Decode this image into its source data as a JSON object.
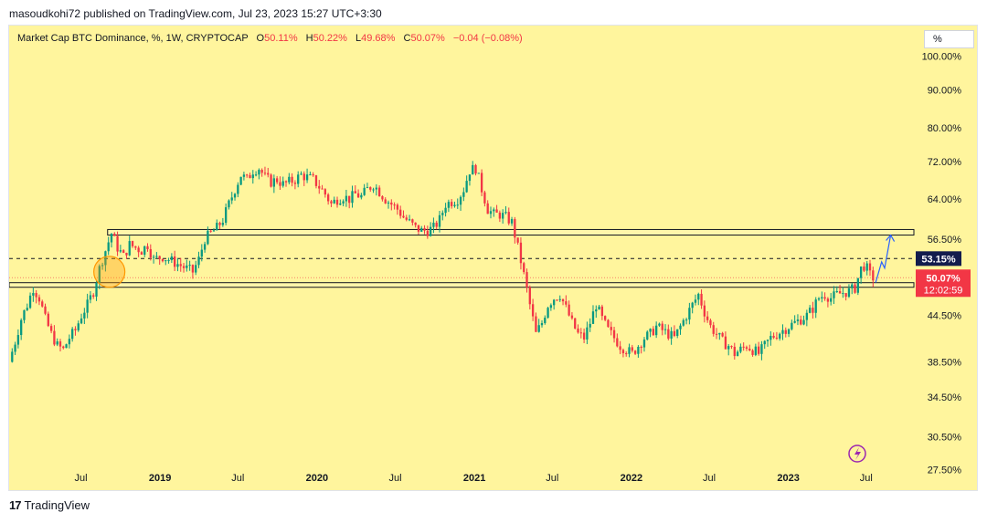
{
  "publisher": "masoudkohi72 published on TradingView.com, Jul 23, 2023 15:27 UTC+3:30",
  "header": {
    "symbol": "Market Cap BTC Dominance, %, 1W, CRYPTOCAP",
    "o_label": "O",
    "o_value": "50.11%",
    "h_label": "H",
    "h_value": "50.22%",
    "l_label": "L",
    "l_value": "49.68%",
    "c_label": "C",
    "c_value": "50.07%",
    "change": "−0.04 (−0.08%)"
  },
  "unit_button": "%",
  "footer": {
    "logo": "17",
    "brand": "TradingView"
  },
  "colors": {
    "background": "#fff59d",
    "up": "#089981",
    "down": "#f23645",
    "level_box_border": "#131722",
    "projection": "#2962ff",
    "highlight_circle": "#ff9800",
    "label_53": "#131c4d",
    "label_last": "#f23645"
  },
  "icons": {
    "bolt": "lightning-icon"
  },
  "chart_data": {
    "type": "candlestick",
    "title": "Market Cap BTC Dominance, %, 1W, CRYPTOCAP",
    "y_scale": "log",
    "y_axis_ticks": [
      "100.00%",
      "90.00%",
      "80.00%",
      "72.00%",
      "64.00%",
      "56.50%",
      "44.50%",
      "38.50%",
      "34.50%",
      "30.50%",
      "27.50%"
    ],
    "y_tick_values": [
      100,
      90,
      80,
      72,
      64,
      56.5,
      44.5,
      38.5,
      34.5,
      30.5,
      27.5
    ],
    "x_axis_ticks": [
      "Jul",
      "2019",
      "Jul",
      "2020",
      "Jul",
      "2021",
      "Jul",
      "2022",
      "Jul",
      "2023",
      "Jul"
    ],
    "x_tick_dates": [
      "2018-07-01",
      "2019-01-01",
      "2019-07-01",
      "2020-01-01",
      "2020-07-01",
      "2021-01-01",
      "2021-07-01",
      "2022-01-01",
      "2022-07-01",
      "2023-01-01",
      "2023-07-01"
    ],
    "x_range": [
      "2018-01-15",
      "2023-10-20"
    ],
    "y_range": [
      25.8,
      110
    ],
    "ohlc_last": {
      "open": 50.11,
      "high": 50.22,
      "low": 49.68,
      "close": 50.07
    },
    "change": -0.04,
    "change_pct": -0.08,
    "price_labels": [
      {
        "text": "53.15%",
        "value": 53.15
      },
      {
        "text": "50.07%",
        "value": 50.07,
        "countdown": "12:02:59"
      }
    ],
    "dashed_level": 53.15,
    "level_zones": [
      {
        "start": "2018-09-01",
        "end": "2023-10-20",
        "low": 57.2,
        "high": 58.2
      },
      {
        "start": "2018-01-15",
        "end": "2023-10-20",
        "low": 48.6,
        "high": 49.3
      }
    ],
    "highlight": {
      "date": "2018-09-05",
      "value": 51.0
    },
    "projection_path": [
      {
        "date": "2023-07-23",
        "value": 49.3
      },
      {
        "date": "2023-08-06",
        "value": 52.6
      },
      {
        "date": "2023-08-13",
        "value": 51.6
      },
      {
        "date": "2023-08-27",
        "value": 57.2
      }
    ],
    "price_path": [
      [
        "2018-01-15",
        38.5
      ],
      [
        "2018-01-29",
        41.0
      ],
      [
        "2018-02-12",
        44.0
      ],
      [
        "2018-02-26",
        46.0
      ],
      [
        "2018-03-12",
        48.5
      ],
      [
        "2018-03-26",
        47.0
      ],
      [
        "2018-04-09",
        44.0
      ],
      [
        "2018-04-23",
        42.0
      ],
      [
        "2018-05-07",
        40.5
      ],
      [
        "2018-05-21",
        40.0
      ],
      [
        "2018-06-04",
        41.5
      ],
      [
        "2018-06-18",
        42.5
      ],
      [
        "2018-07-02",
        44.5
      ],
      [
        "2018-07-16",
        46.0
      ],
      [
        "2018-07-30",
        48.0
      ],
      [
        "2018-08-13",
        51.5
      ],
      [
        "2018-08-27",
        54.5
      ],
      [
        "2018-09-10",
        57.5
      ],
      [
        "2018-09-24",
        55.0
      ],
      [
        "2018-10-08",
        53.5
      ],
      [
        "2018-10-22",
        55.5
      ],
      [
        "2018-11-05",
        55.0
      ],
      [
        "2018-11-19",
        54.5
      ],
      [
        "2018-12-03",
        55.5
      ],
      [
        "2018-12-17",
        53.0
      ],
      [
        "2019-01-07",
        53.5
      ],
      [
        "2019-01-21",
        53.0
      ],
      [
        "2019-02-04",
        52.5
      ],
      [
        "2019-02-18",
        52.0
      ],
      [
        "2019-03-04",
        51.5
      ],
      [
        "2019-03-18",
        51.0
      ],
      [
        "2019-04-01",
        53.0
      ],
      [
        "2019-04-15",
        56.5
      ],
      [
        "2019-04-29",
        57.5
      ],
      [
        "2019-05-13",
        58.5
      ],
      [
        "2019-05-27",
        60.0
      ],
      [
        "2019-06-10",
        63.0
      ],
      [
        "2019-06-24",
        66.0
      ],
      [
        "2019-07-08",
        69.0
      ],
      [
        "2019-07-22",
        68.0
      ],
      [
        "2019-08-05",
        70.0
      ],
      [
        "2019-08-19",
        70.5
      ],
      [
        "2019-09-02",
        68.5
      ],
      [
        "2019-09-16",
        67.5
      ],
      [
        "2019-09-30",
        68.0
      ],
      [
        "2019-10-14",
        67.0
      ],
      [
        "2019-10-28",
        67.5
      ],
      [
        "2019-11-11",
        68.0
      ],
      [
        "2019-11-25",
        69.0
      ],
      [
        "2019-12-09",
        68.5
      ],
      [
        "2019-12-23",
        68.0
      ],
      [
        "2020-01-06",
        66.5
      ],
      [
        "2020-01-20",
        65.0
      ],
      [
        "2020-02-03",
        63.0
      ],
      [
        "2020-02-17",
        64.0
      ],
      [
        "2020-03-02",
        64.5
      ],
      [
        "2020-03-16",
        64.0
      ],
      [
        "2020-03-30",
        65.0
      ],
      [
        "2020-04-13",
        64.5
      ],
      [
        "2020-04-27",
        66.0
      ],
      [
        "2020-05-11",
        67.0
      ],
      [
        "2020-05-25",
        65.5
      ],
      [
        "2020-06-08",
        64.0
      ],
      [
        "2020-06-22",
        63.0
      ],
      [
        "2020-07-06",
        62.0
      ],
      [
        "2020-07-20",
        60.5
      ],
      [
        "2020-08-03",
        59.5
      ],
      [
        "2020-08-17",
        58.5
      ],
      [
        "2020-08-31",
        58.0
      ],
      [
        "2020-09-14",
        58.0
      ],
      [
        "2020-09-28",
        58.5
      ],
      [
        "2020-10-12",
        60.0
      ],
      [
        "2020-10-26",
        63.0
      ],
      [
        "2020-11-09",
        63.5
      ],
      [
        "2020-11-23",
        64.0
      ],
      [
        "2020-12-07",
        66.0
      ],
      [
        "2020-12-21",
        70.0
      ],
      [
        "2021-01-04",
        70.5
      ],
      [
        "2021-01-18",
        66.0
      ],
      [
        "2021-02-01",
        62.0
      ],
      [
        "2021-02-15",
        61.0
      ],
      [
        "2021-03-01",
        61.0
      ],
      [
        "2021-03-15",
        60.5
      ],
      [
        "2021-03-29",
        59.5
      ],
      [
        "2021-04-12",
        55.0
      ],
      [
        "2021-04-26",
        50.5
      ],
      [
        "2021-05-10",
        46.0
      ],
      [
        "2021-05-24",
        42.0
      ],
      [
        "2021-06-07",
        43.5
      ],
      [
        "2021-06-21",
        46.0
      ],
      [
        "2021-07-05",
        47.0
      ],
      [
        "2021-07-19",
        47.5
      ],
      [
        "2021-08-02",
        45.5
      ],
      [
        "2021-08-16",
        43.5
      ],
      [
        "2021-08-30",
        42.0
      ],
      [
        "2021-09-13",
        41.5
      ],
      [
        "2021-09-27",
        43.5
      ],
      [
        "2021-10-11",
        46.0
      ],
      [
        "2021-10-25",
        44.0
      ],
      [
        "2021-11-08",
        42.5
      ],
      [
        "2021-11-22",
        41.5
      ],
      [
        "2021-12-06",
        40.5
      ],
      [
        "2021-12-20",
        40.0
      ],
      [
        "2022-01-03",
        39.5
      ],
      [
        "2022-01-17",
        40.5
      ],
      [
        "2022-01-31",
        41.5
      ],
      [
        "2022-02-14",
        42.0
      ],
      [
        "2022-02-28",
        43.0
      ],
      [
        "2022-03-14",
        42.5
      ],
      [
        "2022-03-28",
        42.0
      ],
      [
        "2022-04-11",
        41.5
      ],
      [
        "2022-04-25",
        43.0
      ],
      [
        "2022-05-09",
        44.5
      ],
      [
        "2022-05-23",
        46.0
      ],
      [
        "2022-06-06",
        47.5
      ],
      [
        "2022-06-20",
        45.0
      ],
      [
        "2022-07-04",
        43.0
      ],
      [
        "2022-07-18",
        42.0
      ],
      [
        "2022-08-01",
        41.0
      ],
      [
        "2022-08-15",
        40.5
      ],
      [
        "2022-08-29",
        39.5
      ],
      [
        "2022-09-12",
        40.0
      ],
      [
        "2022-09-26",
        40.5
      ],
      [
        "2022-10-10",
        40.0
      ],
      [
        "2022-10-24",
        39.5
      ],
      [
        "2022-11-07",
        40.5
      ],
      [
        "2022-11-21",
        41.5
      ],
      [
        "2022-12-05",
        42.0
      ],
      [
        "2022-12-19",
        42.5
      ],
      [
        "2023-01-02",
        43.0
      ],
      [
        "2023-01-16",
        43.5
      ],
      [
        "2023-01-30",
        44.0
      ],
      [
        "2023-02-13",
        44.5
      ],
      [
        "2023-02-27",
        45.5
      ],
      [
        "2023-03-13",
        47.0
      ],
      [
        "2023-03-27",
        47.5
      ],
      [
        "2023-04-10",
        47.0
      ],
      [
        "2023-04-24",
        47.5
      ],
      [
        "2023-05-08",
        47.8
      ],
      [
        "2023-05-22",
        48.0
      ],
      [
        "2023-06-05",
        48.5
      ],
      [
        "2023-06-19",
        51.5
      ],
      [
        "2023-06-26",
        52.0
      ],
      [
        "2023-07-03",
        51.5
      ],
      [
        "2023-07-10",
        50.5
      ],
      [
        "2023-07-17",
        50.07
      ]
    ]
  }
}
